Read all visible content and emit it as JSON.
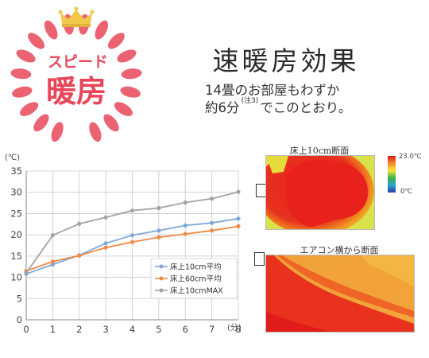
{
  "badge": {
    "top_text": "スピード",
    "main_text": "暖房",
    "color": "#e8475a",
    "crown_color": "#f2c84b"
  },
  "header": {
    "title": "速暖房効果",
    "line1": "14畳のお部屋もわずか",
    "line2_prefix": "約6分",
    "note_mark": "(注3)",
    "line2_suffix": "でこのとおり。"
  },
  "chart_data": {
    "type": "line",
    "x": [
      0,
      1,
      2,
      3,
      4,
      5,
      6,
      7,
      8
    ],
    "series": [
      {
        "name": "床上10cm平均",
        "color": "#7fa9d9",
        "values": [
          10.8,
          13.0,
          15.2,
          18.0,
          19.9,
          21.0,
          22.2,
          22.8,
          23.8
        ]
      },
      {
        "name": "床上60cm平均",
        "color": "#f08a44",
        "values": [
          11.5,
          13.7,
          15.1,
          17.0,
          18.3,
          19.4,
          20.2,
          21.0,
          22.0
        ]
      },
      {
        "name": "床上10cmMAX",
        "color": "#a3a3a3",
        "values": [
          11.0,
          19.9,
          22.6,
          24.1,
          25.7,
          26.3,
          27.6,
          28.5,
          30.1
        ]
      }
    ],
    "xlabel": "(分)",
    "ylabel": "(℃)",
    "xlim": [
      0,
      8
    ],
    "ylim": [
      0,
      35
    ],
    "xticks": [
      0,
      1,
      2,
      3,
      4,
      5,
      6,
      7,
      8
    ],
    "yticks": [
      0,
      5,
      10,
      15,
      20,
      25,
      30,
      35
    ],
    "grid": true,
    "legend_position": "bottom-right"
  },
  "heatmaps": {
    "top_title": "床上10cm断面",
    "bottom_title": "エアコン横から断面",
    "colorbar_max": "23.0℃",
    "colorbar_min": "0℃"
  }
}
